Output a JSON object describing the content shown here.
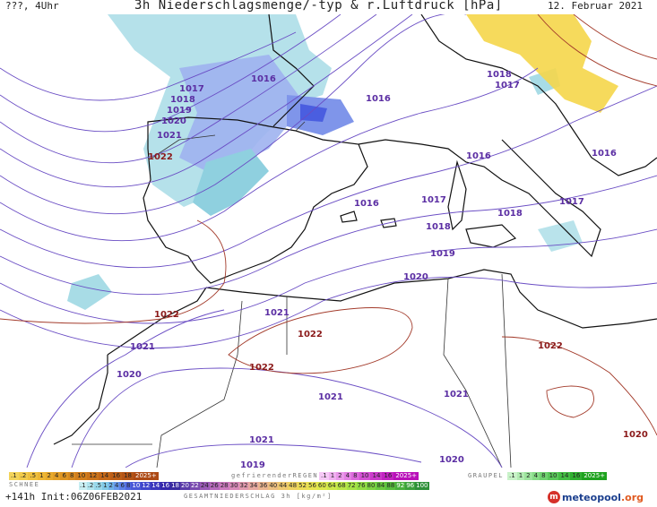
{
  "header": {
    "left": "???, 4Uhr",
    "title": "3h Niederschlagsmenge/-typ & r.Luftdruck [hPa]",
    "date": "12. Februar 2021"
  },
  "map": {
    "isobar_labels": [
      {
        "text": "1016",
        "color": "#5b2ea3"
      },
      {
        "text": "1017",
        "color": "#5b2ea3"
      },
      {
        "text": "1018",
        "color": "#5b2ea3"
      },
      {
        "text": "1019",
        "color": "#5b2ea3"
      },
      {
        "text": "1020",
        "color": "#5b2ea3"
      },
      {
        "text": "1021",
        "color": "#5b2ea3"
      },
      {
        "text": "1022",
        "color": "#8b1a1a"
      },
      {
        "text": "1016",
        "color": "#5b2ea3"
      },
      {
        "text": "1018",
        "color": "#5b2ea3"
      },
      {
        "text": "1017",
        "color": "#5b2ea3"
      },
      {
        "text": "1016",
        "color": "#5b2ea3"
      },
      {
        "text": "1016",
        "color": "#5b2ea3"
      },
      {
        "text": "1016",
        "color": "#5b2ea3"
      },
      {
        "text": "1017",
        "color": "#5b2ea3"
      },
      {
        "text": "1018",
        "color": "#5b2ea3"
      },
      {
        "text": "1017",
        "color": "#5b2ea3"
      },
      {
        "text": "1018",
        "color": "#5b2ea3"
      },
      {
        "text": "1019",
        "color": "#5b2ea3"
      },
      {
        "text": "1020",
        "color": "#5b2ea3"
      },
      {
        "text": "1021",
        "color": "#5b2ea3"
      },
      {
        "text": "1021",
        "color": "#5b2ea3"
      },
      {
        "text": "1022",
        "color": "#8b1a1a"
      },
      {
        "text": "1022",
        "color": "#8b1a1a"
      },
      {
        "text": "1022",
        "color": "#8b1a1a"
      },
      {
        "text": "1022",
        "color": "#8b1a1a"
      },
      {
        "text": "1021",
        "color": "#5b2ea3"
      },
      {
        "text": "1020",
        "color": "#5b2ea3"
      },
      {
        "text": "1021",
        "color": "#5b2ea3"
      },
      {
        "text": "1021",
        "color": "#5b2ea3"
      },
      {
        "text": "1020",
        "color": "#5b2ea3"
      },
      {
        "text": "1019",
        "color": "#5b2ea3"
      },
      {
        "text": "1020",
        "color": "#5b2ea3"
      }
    ]
  },
  "legend": {
    "snow_label": "SCHNEE",
    "snow_scale": [
      ".1",
      ".2",
      ".5",
      "1",
      "2",
      "4",
      "6",
      "8",
      "10",
      "12",
      "14",
      "16",
      "18",
      "2025+"
    ],
    "freezing_label": "gefrierenderREGEN",
    "freezing_scale": [
      ".1",
      "1",
      "2",
      "4",
      "8",
      "10",
      "14",
      "16",
      "2025+"
    ],
    "graupel_label": "GRAUPEL",
    "graupel_scale": [
      ".1",
      "1",
      "2",
      "4",
      "8",
      "10",
      "14",
      "16",
      "2025+"
    ],
    "precip_scale": [
      ".1",
      ".2",
      ".5",
      "1",
      "2",
      "4",
      "6",
      "8",
      "10",
      "12",
      "14",
      "16",
      "18",
      "20",
      "22",
      "24",
      "26",
      "28",
      "30",
      "32",
      "34",
      "36",
      "40",
      "44",
      "48",
      "52",
      "56",
      "60",
      "64",
      "68",
      "72",
      "76",
      "80",
      "84",
      "88",
      "92",
      "96",
      "100"
    ],
    "total_label": "GESAMTNIEDERSCHLAG 3h [kg/m²]",
    "colors": {
      "snow": "#e6b23c",
      "rain": "#3b5bd9",
      "freezing": "#e070e0",
      "graupel": "#6fd26f"
    }
  },
  "footer": {
    "run": "+141h Init:06Z06FEB2021",
    "logo": "meteopool",
    "logo_tld": ".org"
  }
}
